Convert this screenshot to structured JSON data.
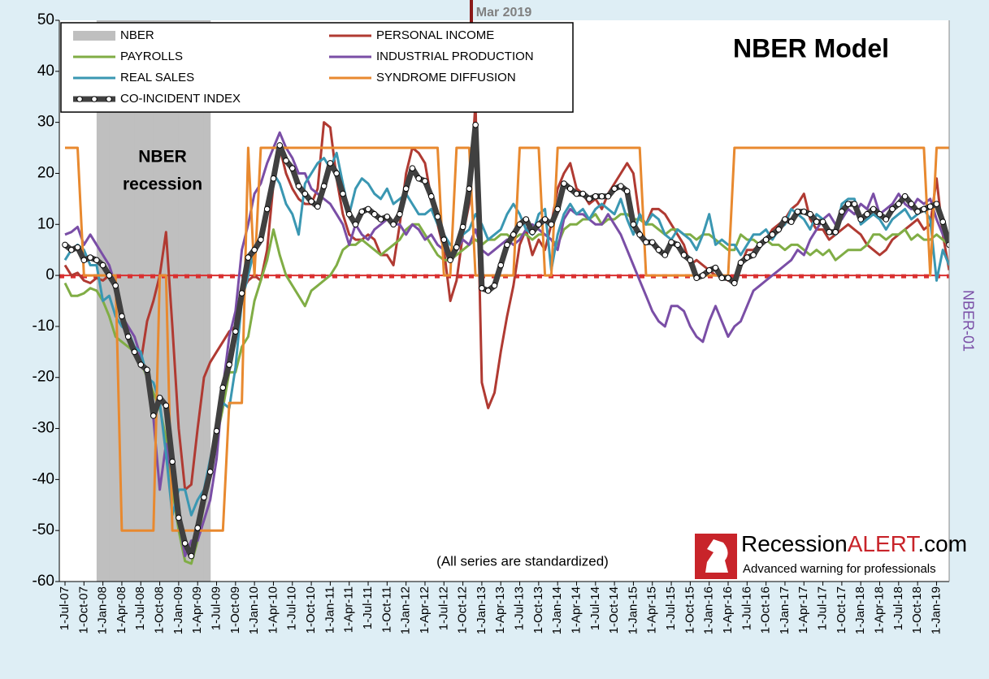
{
  "chart_data": {
    "type": "line",
    "title": "NBER Model",
    "recession_label": [
      "NBER",
      "recession"
    ],
    "note": "(All series are standardized)",
    "annotation": "Mar 2019",
    "y2_label": "NBER-01",
    "logo": {
      "parts": [
        "Recession",
        "ALERT",
        ".com"
      ],
      "tagline": "Advanced warning for professionals"
    },
    "reference_line": {
      "value": 0,
      "color": "#d93030"
    },
    "ylim": [
      -60,
      50
    ],
    "yticks": [
      50,
      40,
      30,
      20,
      10,
      0,
      -10,
      -20,
      -30,
      -40,
      -50,
      -60
    ],
    "categories": [
      "1-Jul-07",
      null,
      null,
      "1-Oct-07",
      null,
      null,
      "1-Jan-08",
      null,
      null,
      "1-Apr-08",
      null,
      null,
      "1-Jul-08",
      null,
      null,
      "1-Oct-08",
      null,
      null,
      "1-Jan-09",
      null,
      null,
      "1-Apr-09",
      null,
      null,
      "1-Jul-09",
      null,
      null,
      "1-Oct-09",
      null,
      null,
      "1-Jan-10",
      null,
      null,
      "1-Apr-10",
      null,
      null,
      "1-Jul-10",
      null,
      null,
      "1-Oct-10",
      null,
      null,
      "1-Jan-11",
      null,
      null,
      "1-Apr-11",
      null,
      null,
      "1-Jul-11",
      null,
      null,
      "1-Oct-11",
      null,
      null,
      "1-Jan-12",
      null,
      null,
      "1-Apr-12",
      null,
      null,
      "1-Jul-12",
      null,
      null,
      "1-Oct-12",
      null,
      null,
      "1-Jan-13",
      null,
      null,
      "1-Apr-13",
      null,
      null,
      "1-Jul-13",
      null,
      null,
      "1-Oct-13",
      null,
      null,
      "1-Jan-14",
      null,
      null,
      "1-Apr-14",
      null,
      null,
      "1-Jul-14",
      null,
      null,
      "1-Oct-14",
      null,
      null,
      "1-Jan-15",
      null,
      null,
      "1-Apr-15",
      null,
      null,
      "1-Jul-15",
      null,
      null,
      "1-Oct-15",
      null,
      null,
      "1-Jan-16",
      null,
      null,
      "1-Apr-16",
      null,
      null,
      "1-Jul-16",
      null,
      null,
      "1-Oct-16",
      null,
      null,
      "1-Jan-17",
      null,
      null,
      "1-Apr-17",
      null,
      null,
      "1-Jul-17",
      null,
      null,
      "1-Oct-17",
      null,
      null,
      "1-Jan-18",
      null,
      null,
      "1-Apr-18",
      null,
      null,
      "1-Jul-18",
      null,
      null,
      "1-Oct-18",
      null,
      null,
      "1-Jan-19",
      null,
      null
    ],
    "series": [
      {
        "name": "NBER",
        "color": "#bfbfbf",
        "kind": "band",
        "values": [
          0,
          0,
          0,
          0,
          0,
          1,
          1,
          1,
          1,
          1,
          1,
          1,
          1,
          1,
          1,
          1,
          1,
          1,
          1,
          1,
          1,
          1,
          1,
          0,
          0,
          0,
          0,
          0,
          0,
          0,
          0,
          0,
          0,
          0,
          0,
          0,
          0,
          0,
          0,
          0,
          0,
          0,
          0,
          0,
          0,
          0,
          0,
          0,
          0,
          0,
          0,
          0,
          0,
          0,
          0,
          0,
          0,
          0,
          0,
          0,
          0,
          0,
          0,
          0,
          0,
          0,
          0,
          0,
          0,
          0,
          0,
          0,
          0,
          0,
          0,
          0,
          0,
          0,
          0,
          0,
          0,
          0,
          0,
          0,
          0,
          0,
          0,
          0,
          0,
          0,
          0,
          0,
          0,
          0,
          0,
          0,
          0,
          0,
          0,
          0,
          0,
          0,
          0,
          0,
          0,
          0,
          0,
          0,
          0,
          0,
          0,
          0,
          0,
          0,
          0,
          0,
          0,
          0,
          0,
          0,
          0,
          0,
          0,
          0,
          0,
          0,
          0,
          0,
          0,
          0,
          0,
          0,
          0,
          0,
          0,
          0,
          0,
          0,
          0,
          0,
          0
        ]
      },
      {
        "name": "PERSONAL INCOME",
        "color": "#b03a32",
        "values": [
          2,
          0,
          0.5,
          -1,
          -1.5,
          -0.5,
          -1,
          0,
          -2,
          -8,
          -12,
          -15,
          -17,
          -9,
          -5,
          0,
          8.5,
          -10,
          -30,
          -42,
          -41,
          -30,
          -20,
          -17,
          -15,
          -13,
          -11,
          -10,
          -3,
          -1,
          0,
          -1,
          5,
          18,
          25,
          20,
          17,
          15,
          14,
          14,
          17,
          30,
          29,
          19,
          12,
          8,
          7,
          7,
          8,
          7,
          4,
          4,
          2,
          10,
          20,
          25,
          24,
          22,
          15,
          10,
          5,
          -5,
          -1,
          8,
          14,
          34,
          -21,
          -26,
          -23,
          -15,
          -8,
          -2,
          6,
          9,
          4,
          7,
          5,
          10,
          17,
          20,
          22,
          17,
          16,
          14,
          15,
          13,
          16,
          18,
          20,
          22,
          20,
          11,
          10,
          13,
          13,
          12,
          10,
          8,
          6,
          2,
          3,
          2,
          1,
          0,
          0,
          -1,
          -1,
          2,
          5,
          5,
          6,
          7,
          9,
          10,
          11,
          13,
          14,
          16,
          11,
          9,
          9,
          7,
          8,
          9,
          10,
          9,
          8,
          6,
          5,
          4,
          5,
          7,
          8,
          9,
          10,
          11,
          9,
          10,
          19,
          8,
          1
        ]
      },
      {
        "name": "PAYROLLS",
        "color": "#80ad45",
        "values": [
          -1.5,
          -4,
          -4,
          -3.5,
          -2.5,
          -3,
          -5,
          -8,
          -12,
          -13,
          -14,
          -15,
          -17,
          -20,
          -23,
          -26,
          -32,
          -42,
          -50,
          -56,
          -56.5,
          -52,
          -45,
          -38,
          -32,
          -26,
          -19,
          -19,
          -14,
          -12,
          -5,
          -1,
          3,
          9,
          4,
          0,
          -2,
          -4,
          -6,
          -3,
          -2,
          -1,
          0,
          2,
          5,
          6,
          6,
          7,
          6,
          5,
          4,
          5,
          6,
          7,
          9,
          10,
          10,
          8,
          6,
          4,
          3,
          3,
          4,
          5,
          6,
          7,
          6,
          7,
          7,
          8,
          8,
          7,
          8,
          8,
          7,
          8,
          8,
          7,
          6,
          9,
          10,
          10,
          11,
          11,
          12,
          10,
          11,
          11,
          12,
          12,
          11,
          11,
          10,
          10,
          9,
          8,
          9,
          9,
          8,
          8,
          7,
          8,
          8,
          7,
          6,
          5,
          5,
          8,
          7,
          7,
          6,
          7,
          6,
          6,
          5,
          6,
          6,
          5,
          4,
          5,
          4,
          5,
          3,
          4,
          5,
          5,
          5,
          6,
          8,
          8,
          7,
          8,
          8,
          9,
          7,
          8,
          7,
          7,
          8,
          7,
          6
        ]
      },
      {
        "name": "INDUSTRIAL PRODUCTION",
        "color": "#7a4ea6",
        "values": [
          8,
          8.5,
          9.5,
          6,
          8,
          6,
          4,
          2,
          -2,
          -8,
          -10,
          -12,
          -16,
          -20,
          -28,
          -42,
          -33,
          -40,
          -48,
          -55,
          -52,
          -52,
          -48,
          -44,
          -36,
          -22,
          -12,
          -7,
          5,
          10,
          16,
          18,
          22,
          25,
          28,
          25,
          23,
          20,
          20,
          17,
          16,
          15,
          14,
          12,
          10,
          6,
          10,
          8,
          7,
          9,
          10,
          11,
          10,
          10,
          8,
          10,
          9,
          7,
          8,
          6,
          5,
          4,
          5,
          7,
          6,
          9,
          5,
          4,
          5,
          6,
          7,
          6,
          7,
          9,
          10,
          9,
          8,
          7,
          5,
          11,
          13,
          12,
          12,
          11,
          10,
          10,
          12,
          10,
          8,
          5,
          2,
          -1,
          -4,
          -7,
          -9,
          -10,
          -6,
          -6,
          -7,
          -10,
          -12,
          -13,
          -9,
          -6,
          -9,
          -12,
          -10,
          -9,
          -6,
          -3,
          -2,
          -1,
          0,
          1,
          2,
          3,
          5,
          4,
          7,
          9,
          11,
          12,
          10,
          11,
          13,
          12,
          14,
          13,
          16,
          12,
          13,
          14,
          16,
          14,
          13,
          15,
          14,
          15,
          11,
          8,
          6
        ]
      },
      {
        "name": "REAL SALES",
        "color": "#3a97b2",
        "values": [
          3,
          5,
          6,
          5,
          2,
          2,
          -5,
          -4,
          -8,
          -10,
          -11,
          -14,
          -15,
          -20,
          -21,
          -25,
          -35,
          -47,
          -42,
          -42,
          -47,
          -44,
          -42,
          -36,
          -30,
          -25,
          -26,
          -18,
          -5,
          0,
          5,
          7,
          12,
          20,
          18,
          14,
          12,
          8,
          18,
          20,
          22,
          23,
          21,
          24,
          18,
          12,
          17,
          19,
          18,
          16,
          15,
          17,
          14,
          15,
          16,
          14,
          12,
          12,
          13,
          10,
          8,
          6,
          5,
          8,
          9,
          12,
          10,
          7,
          8,
          9,
          12,
          14,
          12,
          9,
          8,
          12,
          13,
          1,
          8,
          12,
          14,
          12,
          13,
          11,
          13,
          14,
          13,
          12,
          15,
          11,
          8,
          12,
          10,
          12,
          11,
          8,
          7,
          9,
          8,
          7,
          5,
          8,
          12,
          6,
          7,
          6,
          6,
          4,
          6,
          8,
          8,
          9,
          7,
          9,
          10,
          13,
          12,
          11,
          9,
          12,
          11,
          9,
          8,
          14,
          15,
          15,
          10,
          11,
          12,
          11,
          9,
          11,
          12,
          13,
          11,
          12,
          13,
          11,
          -1,
          5,
          2
        ]
      },
      {
        "name": "SYNDROME DIFFUSION",
        "color": "#e8892f",
        "values": [
          25,
          25,
          25,
          0,
          0,
          0,
          0,
          0,
          0,
          -50,
          -50,
          -50,
          -50,
          -50,
          -50,
          0,
          0,
          -50,
          -50,
          -50,
          -50,
          -50,
          -50,
          -50,
          -50,
          -50,
          -25,
          -25,
          -25,
          25,
          0,
          25,
          25,
          25,
          25,
          25,
          25,
          25,
          25,
          25,
          25,
          25,
          25,
          25,
          25,
          25,
          25,
          25,
          25,
          25,
          25,
          25,
          25,
          25,
          25,
          25,
          25,
          25,
          25,
          25,
          0,
          0,
          25,
          25,
          25,
          0,
          0,
          0,
          0,
          0,
          0,
          0,
          25,
          25,
          25,
          25,
          0,
          0,
          25,
          25,
          25,
          25,
          25,
          25,
          25,
          25,
          25,
          25,
          25,
          25,
          25,
          25,
          0,
          0,
          0,
          0,
          0,
          0,
          0,
          0,
          0,
          0,
          0,
          0,
          0,
          0,
          25,
          25,
          25,
          25,
          25,
          25,
          25,
          25,
          25,
          25,
          25,
          25,
          25,
          25,
          25,
          25,
          25,
          25,
          25,
          25,
          25,
          25,
          25,
          25,
          25,
          25,
          25,
          25,
          25,
          25,
          25,
          0,
          25,
          25,
          25
        ]
      },
      {
        "name": "CO-INCIDENT INDEX",
        "color": "#404040",
        "kind": "dotted",
        "values": [
          6,
          5,
          5.5,
          3,
          3.5,
          3,
          2,
          0,
          -2,
          -8,
          -12,
          -15,
          -17.5,
          -18.5,
          -27.5,
          -24,
          -25.5,
          -36.5,
          -47.5,
          -52.5,
          -55,
          -49.5,
          -43.5,
          -38.5,
          -30.5,
          -22,
          -17.5,
          -11,
          -3.5,
          3.5,
          5,
          7,
          13,
          19,
          25.5,
          22.5,
          21,
          17.5,
          16,
          14.5,
          13.5,
          17.5,
          22,
          20,
          16,
          12,
          10,
          12.5,
          13,
          12,
          11,
          11.5,
          10,
          12,
          17,
          21,
          19,
          18.5,
          15.5,
          11.5,
          7,
          3,
          5.5,
          9.5,
          17,
          29.5,
          -2.5,
          -3,
          -2,
          2,
          6,
          8,
          10,
          11,
          8.5,
          10,
          11,
          10,
          13,
          18,
          17,
          16,
          16,
          15,
          15.5,
          15.5,
          15.5,
          17,
          17.5,
          16.5,
          10,
          8,
          6.5,
          6.5,
          5,
          4,
          6.5,
          6,
          4,
          3,
          -0.5,
          0,
          1,
          1.5,
          -0.5,
          -0.5,
          -1.5,
          2.5,
          3.5,
          4,
          6,
          7,
          8,
          9,
          11,
          10.5,
          12.5,
          12.5,
          12,
          10.5,
          10.5,
          8.5,
          8.5,
          12.5,
          14,
          14,
          11,
          12,
          13,
          12,
          11,
          13,
          14,
          15.5,
          14,
          12.5,
          13,
          13.5,
          14,
          10.5,
          6
        ]
      }
    ]
  }
}
